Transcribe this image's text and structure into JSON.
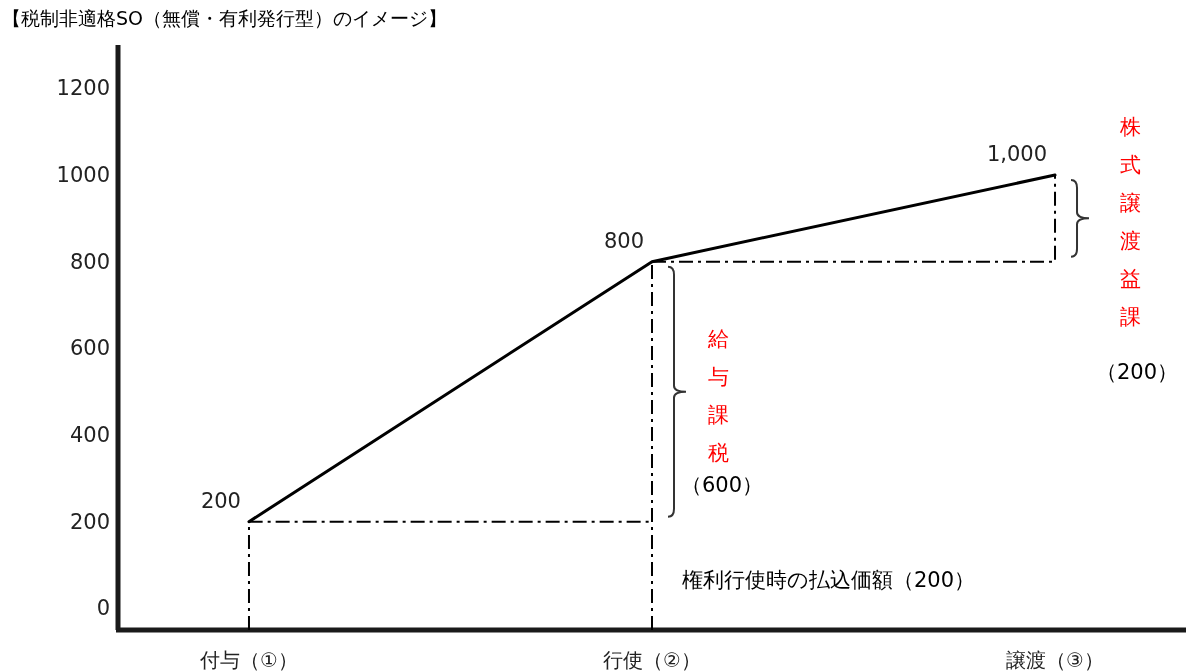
{
  "chart_data": {
    "type": "line",
    "title": "【税制非適格SO（無償・有利発行型）のイメージ】",
    "categories": [
      "付与（①）",
      "行使（②）",
      "譲渡（③）"
    ],
    "ylim": [
      -50,
      1300
    ],
    "yticks": [
      0,
      200,
      400,
      600,
      800,
      1000,
      1200
    ],
    "grid": false,
    "marker": "none",
    "series": [
      {
        "color": "#000000",
        "values": [
          200,
          800,
          1000
        ],
        "value_labels": [
          "200",
          "800",
          "1,000"
        ],
        "line_style": "solid"
      },
      {
        "color": "#000000",
        "x": [
          "付与（①）",
          "付与（①）",
          "行使（②）"
        ],
        "values": [
          -50,
          200,
          200
        ],
        "line_style": "dashed"
      },
      {
        "color": "#000000",
        "x": [
          "行使（②）",
          "譲渡（③）",
          "譲渡（③）"
        ],
        "values": [
          800,
          800,
          1000
        ],
        "line_style": "dashed"
      },
      {
        "color": "#000000",
        "x": [
          "行使（②）",
          "行使（②）"
        ],
        "values": [
          -50,
          800
        ],
        "line_style": "dashed"
      }
    ],
    "annotations": [
      {
        "text": "給与課税",
        "x": "行使（②）",
        "y": 490
      },
      {
        "text": "（600）",
        "x": "行使（②）",
        "y": 284
      },
      "株式譲渡益課",
      "（200）",
      {
        "text": "権利行使時の払込価額（200）",
        "x": "行使（②）",
        "y": 65
      }
    ]
  }
}
